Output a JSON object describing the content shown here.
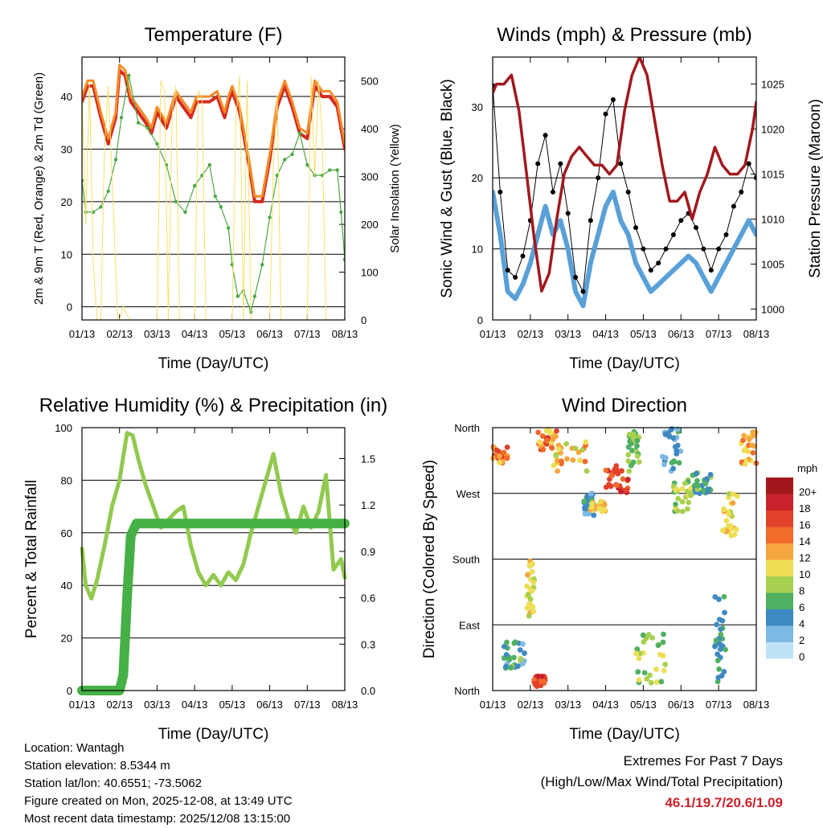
{
  "info": {
    "location": "Location: Wantagh",
    "elevation": "Station elevation: 8.5344 m",
    "latlon": "Station lat/lon: 40.6551; -73.5062",
    "created": "Figure created on Mon, 2025-12-08, at 13:49 UTC",
    "recent": "Most recent data timestamp: 2025/12/08 13:15:00"
  },
  "extremes": {
    "title": "Extremes For Past 7 Days",
    "subtitle": "(High/Low/Max Wind/Total Precipitation)",
    "values": "46.1/19.7/20.6/1.09"
  },
  "colors": {
    "temp2m": "#d42a20",
    "temp9m": "#f58a26",
    "dewpoint": "#4aa843",
    "solar": "#f5e06a",
    "wind": "#5aa0d8",
    "gust": "#000000",
    "pressure": "#a1191e",
    "rh": "#92c94f",
    "precip": "#46b046"
  },
  "chart_data": [
    {
      "type": "line",
      "title": "Temperature (F)",
      "xlabel": "Time (Day/UTC)",
      "ylabel": "2m & 9m T (Red, Orange) & 2m Td (Green)",
      "ylabel_right": "Solar Insolation (Yellow)",
      "xticks": [
        "01/13",
        "02/13",
        "03/13",
        "04/13",
        "05/13",
        "06/13",
        "07/13",
        "08/13"
      ],
      "xlim": [
        0,
        7
      ],
      "ylim": [
        -2.5,
        47.5
      ],
      "yticks": [
        0,
        10,
        20,
        30,
        40
      ],
      "ylim_right": [
        0,
        550
      ],
      "yticks_right": [
        0,
        100,
        200,
        300,
        400,
        500
      ],
      "series": [
        {
          "name": "2m T",
          "color": "#d42a20",
          "x": [
            0,
            0.15,
            0.3,
            0.5,
            0.7,
            0.9,
            1.0,
            1.15,
            1.3,
            1.5,
            1.7,
            1.85,
            2.0,
            2.25,
            2.5,
            2.7,
            2.9,
            3.05,
            3.2,
            3.4,
            3.6,
            3.8,
            3.9,
            4.0,
            4.2,
            4.45,
            4.6,
            4.8,
            5.0,
            5.2,
            5.4,
            5.6,
            5.8,
            6.0,
            6.2,
            6.4,
            6.6,
            6.8,
            7.0
          ],
          "y": [
            39,
            42,
            42,
            36,
            31,
            36,
            45,
            44,
            39,
            37,
            35,
            33,
            37,
            34,
            40,
            38,
            36,
            39,
            39,
            39,
            40,
            36,
            39,
            41,
            37,
            27,
            20,
            20,
            28,
            38,
            42,
            38,
            33,
            32,
            42,
            40,
            40,
            38,
            30
          ]
        },
        {
          "name": "9m T",
          "color": "#f58a26",
          "x": [
            0,
            0.15,
            0.3,
            0.5,
            0.7,
            0.9,
            1.0,
            1.15,
            1.3,
            1.5,
            1.7,
            1.85,
            2.0,
            2.25,
            2.5,
            2.7,
            2.9,
            3.05,
            3.2,
            3.4,
            3.6,
            3.8,
            3.9,
            4.0,
            4.2,
            4.45,
            4.6,
            4.8,
            5.0,
            5.2,
            5.4,
            5.6,
            5.8,
            6.0,
            6.2,
            6.4,
            6.6,
            6.8,
            7.0
          ],
          "y": [
            40,
            43,
            43,
            37,
            32,
            37,
            46,
            45,
            40,
            38,
            36,
            34,
            38,
            35,
            41,
            39,
            37,
            40,
            40,
            40,
            41,
            37,
            40,
            42,
            38,
            28,
            21,
            21,
            29,
            39,
            43,
            39,
            34,
            33,
            43,
            41,
            41,
            39,
            31
          ]
        },
        {
          "name": "2m Td",
          "color": "#4aa843",
          "x": [
            0,
            0.1,
            0.3,
            0.5,
            0.7,
            0.9,
            1.05,
            1.25,
            1.5,
            1.75,
            2.0,
            2.25,
            2.5,
            2.75,
            3.0,
            3.2,
            3.4,
            3.55,
            3.7,
            3.9,
            4.0,
            4.15,
            4.3,
            4.5,
            4.6,
            4.8,
            5.0,
            5.2,
            5.4,
            5.6,
            5.8,
            6.0,
            6.2,
            6.4,
            6.6,
            6.8,
            6.9,
            7.0
          ],
          "y": [
            24,
            18,
            18,
            19,
            22,
            28,
            36,
            44,
            35,
            34,
            31,
            27,
            20,
            18,
            23,
            25,
            27,
            21,
            19,
            15,
            8,
            2,
            3,
            -1,
            2,
            8,
            17,
            25,
            28,
            29,
            33,
            27,
            25,
            25,
            26,
            26,
            18,
            9
          ]
        },
        {
          "name": "Solar Insolation",
          "axis": "right",
          "color": "#f5e06a",
          "x": [
            0,
            0.1,
            0.2,
            0.3,
            0.4,
            0.5,
            0.6,
            0.7,
            0.8,
            0.95,
            1.0,
            1.1,
            1.2,
            1.3,
            2.0,
            2.1,
            2.2,
            2.3,
            2.4,
            2.5,
            2.6,
            2.7,
            3.0,
            3.1,
            3.2,
            3.3,
            3.4,
            4.0,
            4.1,
            4.2,
            4.3,
            4.4,
            4.5,
            5.0,
            5.1,
            5.2,
            5.3,
            5.4,
            5.5,
            6.0,
            6.1,
            6.2,
            6.3,
            6.4,
            6.5,
            7.0
          ],
          "y": [
            480,
            200,
            500,
            120,
            0,
            0,
            360,
            490,
            300,
            0,
            0,
            30,
            10,
            0,
            0,
            500,
            480,
            0,
            430,
            490,
            0,
            0,
            0,
            480,
            460,
            0,
            0,
            0,
            420,
            510,
            0,
            500,
            0,
            0,
            330,
            470,
            0,
            0,
            0,
            0,
            510,
            300,
            500,
            380,
            0,
            0
          ]
        }
      ]
    },
    {
      "type": "line",
      "title": "Winds (mph) & Pressure (mb)",
      "xlabel": "Time (Day/UTC)",
      "ylabel": "Sonic Wind & Gust (Blue, Black)",
      "ylabel_right": "Station Pressure (Maroon)",
      "xticks": [
        "01/13",
        "02/13",
        "03/13",
        "04/13",
        "05/13",
        "06/13",
        "07/13",
        "08/13"
      ],
      "xlim": [
        0,
        7
      ],
      "ylim": [
        0,
        37
      ],
      "yticks": [
        0,
        10,
        20,
        30
      ],
      "ylim_right": [
        998.8,
        1028
      ],
      "yticks_right": [
        1000,
        1005,
        1010,
        1015,
        1020,
        1025
      ],
      "series": [
        {
          "name": "Sonic Wind",
          "color": "#5aa0d8",
          "x": [
            0,
            0.2,
            0.4,
            0.6,
            0.8,
            1.0,
            1.2,
            1.4,
            1.6,
            1.8,
            2.0,
            2.2,
            2.4,
            2.6,
            2.8,
            3.0,
            3.2,
            3.4,
            3.6,
            3.8,
            4.0,
            4.2,
            4.4,
            4.6,
            4.8,
            5.0,
            5.2,
            5.4,
            5.6,
            5.8,
            6.0,
            6.2,
            6.4,
            6.6,
            6.8,
            7.0
          ],
          "y": [
            18,
            12,
            4,
            3,
            5,
            8,
            12,
            16,
            12,
            14,
            10,
            4,
            2,
            8,
            12,
            16,
            18,
            14,
            12,
            8,
            6,
            4,
            5,
            6,
            7,
            8,
            9,
            8,
            6,
            4,
            6,
            8,
            10,
            12,
            14,
            12
          ]
        },
        {
          "name": "Gust",
          "color": "#000000",
          "x": [
            0,
            0.2,
            0.4,
            0.6,
            0.8,
            1.0,
            1.2,
            1.4,
            1.6,
            1.8,
            2.0,
            2.2,
            2.4,
            2.6,
            2.8,
            3.0,
            3.2,
            3.4,
            3.6,
            3.8,
            4.0,
            4.2,
            4.4,
            4.6,
            4.8,
            5.0,
            5.2,
            5.4,
            5.6,
            5.8,
            6.0,
            6.2,
            6.4,
            6.6,
            6.8,
            7.0
          ],
          "y": [
            33,
            18,
            7,
            6,
            9,
            14,
            22,
            26,
            18,
            22,
            15,
            6,
            4,
            14,
            20,
            29,
            31,
            22,
            18,
            13,
            10,
            7,
            8,
            10,
            12,
            14,
            15,
            13,
            10,
            7,
            10,
            12,
            16,
            18,
            22,
            20
          ]
        },
        {
          "name": "Station Pressure",
          "axis": "right",
          "color": "#a1191e",
          "x": [
            0,
            0.1,
            0.3,
            0.5,
            0.7,
            0.9,
            1.1,
            1.3,
            1.5,
            1.7,
            1.9,
            2.1,
            2.3,
            2.5,
            2.7,
            2.9,
            3.1,
            3.3,
            3.5,
            3.7,
            3.9,
            4.1,
            4.3,
            4.5,
            4.7,
            4.9,
            5.1,
            5.3,
            5.5,
            5.7,
            5.9,
            6.1,
            6.3,
            6.5,
            6.7,
            6.9,
            7.0
          ],
          "y": [
            1024,
            1025,
            1025,
            1026,
            1022,
            1015,
            1008,
            1002,
            1004,
            1010,
            1015,
            1017,
            1018,
            1017,
            1016,
            1016,
            1015,
            1016,
            1022,
            1026,
            1028,
            1026,
            1021,
            1016,
            1012,
            1012,
            1013,
            1010,
            1013,
            1015,
            1018,
            1016,
            1015,
            1015,
            1016,
            1020,
            1023
          ]
        }
      ]
    },
    {
      "type": "line",
      "title": "Relative Humidity (%) & Precipitation (in)",
      "xlabel": "Time (Day/UTC)",
      "ylabel": "Percent & Total Rainfall",
      "xticks": [
        "01/13",
        "02/13",
        "03/13",
        "04/13",
        "05/13",
        "06/13",
        "07/13",
        "08/13"
      ],
      "xlim": [
        0,
        7
      ],
      "ylim": [
        0,
        100
      ],
      "yticks": [
        0,
        20,
        40,
        60,
        80,
        100
      ],
      "ylim_right": [
        0,
        1.7
      ],
      "yticks_right": [
        "0.0",
        "0.3",
        "0.6",
        "0.9",
        "1.2",
        "1.5"
      ],
      "series": [
        {
          "name": "Relative Humidity",
          "color": "#92c94f",
          "x": [
            0,
            0.1,
            0.25,
            0.4,
            0.6,
            0.8,
            1.0,
            1.2,
            1.35,
            1.5,
            1.7,
            1.9,
            2.1,
            2.3,
            2.5,
            2.7,
            2.9,
            3.1,
            3.3,
            3.5,
            3.7,
            3.9,
            4.1,
            4.3,
            4.5,
            4.7,
            4.9,
            5.1,
            5.3,
            5.5,
            5.7,
            5.9,
            6.1,
            6.3,
            6.5,
            6.7,
            6.9,
            7.0
          ],
          "y": [
            54,
            40,
            35,
            42,
            55,
            70,
            80,
            98,
            97,
            88,
            78,
            70,
            62,
            65,
            68,
            70,
            55,
            45,
            40,
            44,
            40,
            45,
            42,
            48,
            60,
            70,
            80,
            90,
            75,
            65,
            60,
            70,
            62,
            68,
            82,
            46,
            50,
            43
          ]
        },
        {
          "name": "Total Precipitation",
          "axis": "right",
          "color": "#46b046",
          "x": [
            0,
            1.0,
            1.1,
            1.2,
            1.3,
            1.45,
            7.0
          ],
          "y": [
            0,
            0,
            0.1,
            0.6,
            1.0,
            1.08,
            1.08
          ]
        }
      ]
    },
    {
      "type": "scatter",
      "title": "Wind Direction",
      "xlabel": "Time (Day/UTC)",
      "ylabel": "Direction (Colored By Speed)",
      "xticks": [
        "01/13",
        "02/13",
        "03/13",
        "04/13",
        "05/13",
        "06/13",
        "07/13",
        "08/13"
      ],
      "xlim": [
        0,
        7
      ],
      "ylim": [
        0,
        360
      ],
      "yticks": [
        "North",
        "East",
        "South",
        "West",
        "North"
      ],
      "ytick_values": [
        0,
        90,
        180,
        270,
        360
      ],
      "colorbar": {
        "title": "mph",
        "labels": [
          "20+",
          "18",
          "16",
          "14",
          "12",
          "10",
          "8",
          "6",
          "4",
          "2",
          "0"
        ],
        "colors": [
          "#a3171c",
          "#c8232c",
          "#e2422a",
          "#f26b2a",
          "#f7a63f",
          "#eede55",
          "#a8d050",
          "#4fb062",
          "#3f89c2",
          "#7eb9e3",
          "#bfe3f6"
        ]
      },
      "clusters": [
        {
          "x": [
            0.0,
            0.4
          ],
          "y": [
            310,
            335
          ],
          "speed": [
            10,
            18
          ]
        },
        {
          "x": [
            0.3,
            0.9
          ],
          "y": [
            30,
            70
          ],
          "speed": [
            2,
            8
          ]
        },
        {
          "x": [
            0.9,
            1.1
          ],
          "y": [
            100,
            180
          ],
          "speed": [
            8,
            12
          ]
        },
        {
          "x": [
            1.1,
            1.4
          ],
          "y": [
            5,
            20
          ],
          "speed": [
            14,
            18
          ]
        },
        {
          "x": [
            1.2,
            1.7
          ],
          "y": [
            330,
            360
          ],
          "speed": [
            10,
            18
          ]
        },
        {
          "x": [
            1.6,
            2.5
          ],
          "y": [
            300,
            345
          ],
          "speed": [
            8,
            14
          ]
        },
        {
          "x": [
            2.4,
            2.7
          ],
          "y": [
            240,
            270
          ],
          "speed": [
            2,
            6
          ]
        },
        {
          "x": [
            2.6,
            3.0
          ],
          "y": [
            245,
            260
          ],
          "speed": [
            10,
            12
          ]
        },
        {
          "x": [
            3.0,
            3.6
          ],
          "y": [
            270,
            310
          ],
          "speed": [
            14,
            18
          ]
        },
        {
          "x": [
            3.6,
            3.9
          ],
          "y": [
            300,
            355
          ],
          "speed": [
            6,
            8
          ]
        },
        {
          "x": [
            3.8,
            4.6
          ],
          "y": [
            10,
            80
          ],
          "speed": [
            6,
            10
          ]
        },
        {
          "x": [
            4.5,
            5.0
          ],
          "y": [
            300,
            360
          ],
          "speed": [
            2,
            6
          ]
        },
        {
          "x": [
            4.8,
            5.3
          ],
          "y": [
            240,
            290
          ],
          "speed": [
            6,
            10
          ]
        },
        {
          "x": [
            5.3,
            5.8
          ],
          "y": [
            270,
            300
          ],
          "speed": [
            4,
            8
          ]
        },
        {
          "x": [
            5.9,
            6.2
          ],
          "y": [
            10,
            130
          ],
          "speed": [
            4,
            6
          ]
        },
        {
          "x": [
            6.1,
            6.5
          ],
          "y": [
            210,
            270
          ],
          "speed": [
            8,
            12
          ]
        },
        {
          "x": [
            6.6,
            7.0
          ],
          "y": [
            310,
            355
          ],
          "speed": [
            10,
            14
          ]
        }
      ]
    }
  ]
}
